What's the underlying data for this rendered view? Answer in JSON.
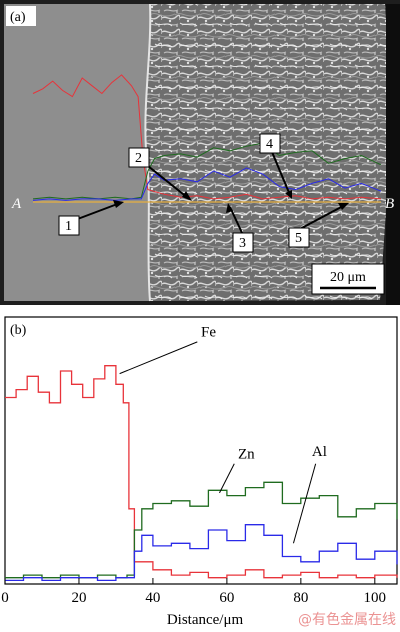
{
  "panel_a": {
    "label": "(a)",
    "point_start": "A",
    "point_end": "B",
    "markers": [
      "1",
      "2",
      "3",
      "4",
      "5"
    ],
    "scale_bar": "20 μm"
  },
  "panel_b": {
    "label": "(b)",
    "watermark": "@有色金属在线"
  },
  "colors": {
    "Fe": "#e8333a",
    "Zn": "#1f6b1f",
    "Al": "#2a2ae8",
    "overlay_line": "#e8b040"
  },
  "chart_data": {
    "type": "line",
    "xlabel": "Distance/μm",
    "ylabel": "",
    "xlim": [
      0,
      106
    ],
    "ylim": [
      0,
      100
    ],
    "x_ticks": [
      0,
      20,
      40,
      60,
      80,
      100
    ],
    "grid": false,
    "legend": "inline labels",
    "series": [
      {
        "name": "Fe",
        "label_x": 53,
        "label_y": 93,
        "x": [
          0,
          3,
          6,
          9,
          12,
          15,
          18,
          21,
          24,
          27,
          30,
          32,
          33.5,
          35,
          40,
          45,
          50,
          55,
          60,
          65,
          70,
          75,
          80,
          85,
          90,
          95,
          100,
          106
        ],
        "y": [
          70,
          73,
          78,
          72,
          68,
          80,
          75,
          70,
          77,
          82,
          75,
          68,
          28,
          8,
          5,
          3,
          4,
          2,
          3,
          5,
          2,
          3,
          4,
          2,
          3,
          2,
          3,
          2
        ]
      },
      {
        "name": "Zn",
        "label_x": 63,
        "label_y": 47,
        "x": [
          0,
          5,
          10,
          15,
          20,
          25,
          30,
          33,
          35,
          37,
          40,
          45,
          50,
          55,
          60,
          65,
          70,
          75,
          80,
          85,
          90,
          95,
          100,
          106
        ],
        "y": [
          2,
          3,
          2,
          3,
          2,
          3,
          2,
          3,
          20,
          28,
          30,
          31,
          29,
          35,
          33,
          36,
          38,
          30,
          32,
          33,
          25,
          28,
          30,
          24
        ]
      },
      {
        "name": "Al",
        "label_x": 83,
        "label_y": 48,
        "x": [
          0,
          5,
          10,
          15,
          20,
          25,
          30,
          33,
          35,
          37,
          40,
          45,
          50,
          55,
          60,
          65,
          70,
          75,
          80,
          85,
          90,
          95,
          100,
          106
        ],
        "y": [
          1,
          2,
          1,
          2,
          2,
          1,
          2,
          2,
          12,
          18,
          14,
          15,
          13,
          20,
          16,
          22,
          18,
          10,
          8,
          12,
          15,
          9,
          12,
          7
        ]
      }
    ]
  }
}
